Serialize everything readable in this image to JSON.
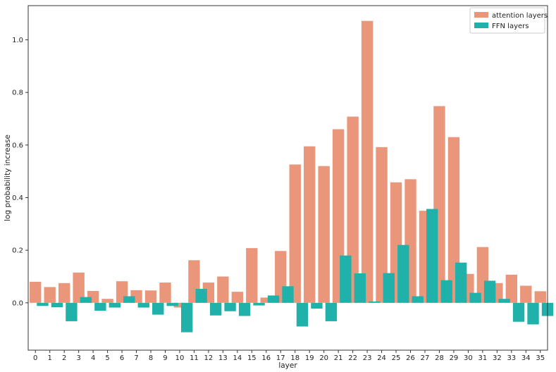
{
  "chart_data": {
    "type": "bar",
    "title": "",
    "xlabel": "layer",
    "ylabel": "log probability increase",
    "ylim": [
      -0.18,
      1.13
    ],
    "yticks": [
      "0.0",
      "0.2",
      "0.4",
      "0.6",
      "0.8",
      "1.0"
    ],
    "ytick_values": [
      0.0,
      0.2,
      0.4,
      0.6,
      0.8,
      1.0
    ],
    "grid": false,
    "legend_position": "top-right",
    "categories": [
      "0",
      "1",
      "2",
      "3",
      "4",
      "5",
      "6",
      "7",
      "8",
      "9",
      "10",
      "11",
      "12",
      "13",
      "14",
      "15",
      "16",
      "17",
      "18",
      "19",
      "20",
      "21",
      "22",
      "23",
      "24",
      "25",
      "26",
      "27",
      "28",
      "29",
      "30",
      "31",
      "32",
      "33",
      "34",
      "35"
    ],
    "series": [
      {
        "name": "attention layers",
        "color": "#e9967a",
        "values": [
          0.08,
          0.06,
          0.075,
          0.115,
          0.045,
          0.015,
          0.082,
          0.048,
          0.047,
          0.077,
          -0.018,
          0.162,
          0.077,
          0.1,
          0.042,
          0.208,
          0.02,
          0.197,
          0.526,
          0.595,
          0.52,
          0.66,
          0.708,
          1.072,
          0.592,
          0.458,
          0.47,
          0.35,
          0.748,
          0.63,
          0.11,
          0.212,
          0.075,
          0.107,
          0.065,
          0.044
        ]
      },
      {
        "name": "FFN layers",
        "color": "#20b2aa",
        "values": [
          -0.012,
          -0.017,
          -0.07,
          0.022,
          -0.03,
          -0.018,
          0.025,
          -0.018,
          -0.045,
          -0.012,
          -0.112,
          0.053,
          -0.048,
          -0.032,
          -0.05,
          -0.01,
          0.028,
          0.063,
          -0.09,
          -0.022,
          -0.07,
          0.18,
          0.112,
          0.005,
          0.113,
          0.22,
          0.025,
          0.357,
          0.086,
          0.153,
          0.038,
          0.084,
          0.015,
          -0.072,
          -0.082,
          -0.05
        ]
      }
    ]
  }
}
